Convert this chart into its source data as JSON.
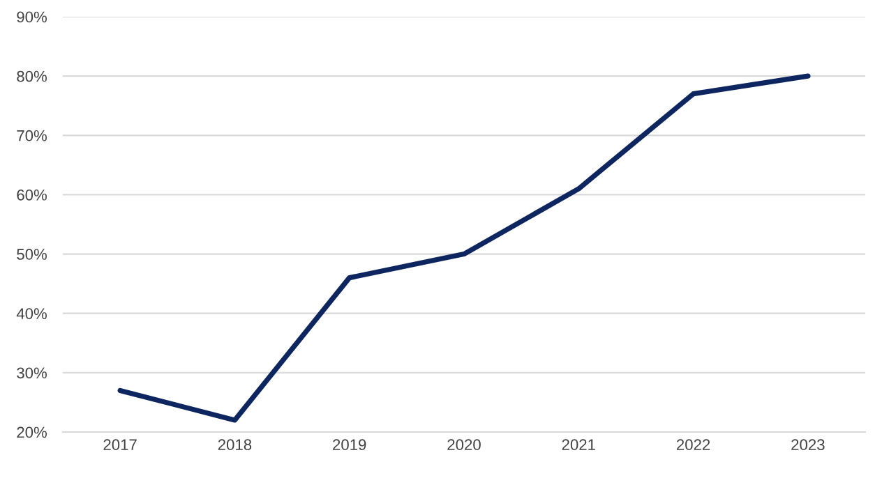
{
  "chart_data": {
    "type": "line",
    "categories": [
      "2017",
      "2018",
      "2019",
      "2020",
      "2021",
      "2022",
      "2023"
    ],
    "series": [
      {
        "color": "#0e2660",
        "values": [
          27,
          22,
          46,
          50,
          61,
          77,
          80
        ]
      }
    ],
    "ylim": [
      20,
      90
    ],
    "yticks": [
      {
        "value": 20,
        "label": "20%"
      },
      {
        "value": 30,
        "label": "30%"
      },
      {
        "value": 40,
        "label": "40%"
      },
      {
        "value": 50,
        "label": "50%"
      },
      {
        "value": 60,
        "label": "60%"
      },
      {
        "value": 70,
        "label": "70%"
      },
      {
        "value": 80,
        "label": "80%"
      },
      {
        "value": 90,
        "label": "90%"
      }
    ],
    "grid": "y",
    "marker": "none",
    "line_style": "solid"
  }
}
